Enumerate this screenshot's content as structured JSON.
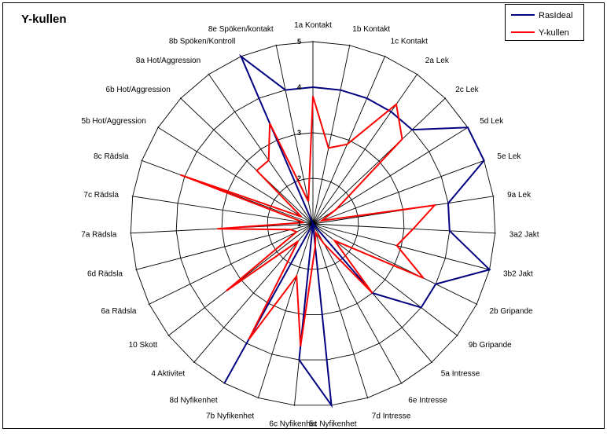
{
  "chart_data": {
    "type": "radar",
    "title": "Y-kullen",
    "categories": [
      "1a Kontakt",
      "1b Kontakt",
      "1c Kontakt",
      "2a Lek",
      "2c Lek",
      "5d Lek",
      "5e Lek",
      "9a Lek",
      "3a2 Jakt",
      "3b2 Jakt",
      "2b Gripande",
      "9b Gripande",
      "5a Intresse",
      "6e Intresse",
      "7d Intresse",
      "5c Nyfikenhet",
      "6c Nyfikenhet",
      "7b Nyfikenhet",
      "8d Nyfikenhet",
      "4 Aktivitet",
      "10 Skott",
      "6a Rädsla",
      "6d Rädsla",
      "7a Rädsla",
      "7c Rädsla",
      "8c Rädsla",
      "5b Hot/Aggression",
      "6b Hot/Aggression",
      "8a Hot/Aggression",
      "8b Spöken/Kontroll",
      "8e Spöken/kontakt"
    ],
    "rlim": [
      1,
      5
    ],
    "ticks": [
      1,
      2,
      3,
      4,
      5
    ],
    "grid": true,
    "legend_position": "top-right",
    "series": [
      {
        "name": "RasIdeal",
        "color": "#000080",
        "values": [
          4,
          4,
          4,
          4,
          4,
          5,
          5,
          4,
          4,
          5,
          4,
          4,
          3,
          1,
          1,
          5,
          4,
          1,
          5,
          1,
          1,
          1,
          1,
          1,
          1,
          1,
          1,
          1,
          1,
          5,
          4
        ]
      },
      {
        "name": "Y-kullen",
        "color": "#ff0000",
        "values": [
          3.8,
          2.7,
          2.9,
          4.2,
          3.7,
          1.6,
          1.2,
          3.7,
          3.2,
          2.9,
          3.7,
          1.6,
          3.0,
          1.5,
          1.2,
          1.5,
          3.7,
          2.2,
          3.9,
          1.5,
          3.4,
          1.4,
          1.5,
          3.1,
          1.2,
          4.1,
          1.3,
          2.7,
          2.7,
          3.4,
          1.5
        ]
      }
    ]
  }
}
